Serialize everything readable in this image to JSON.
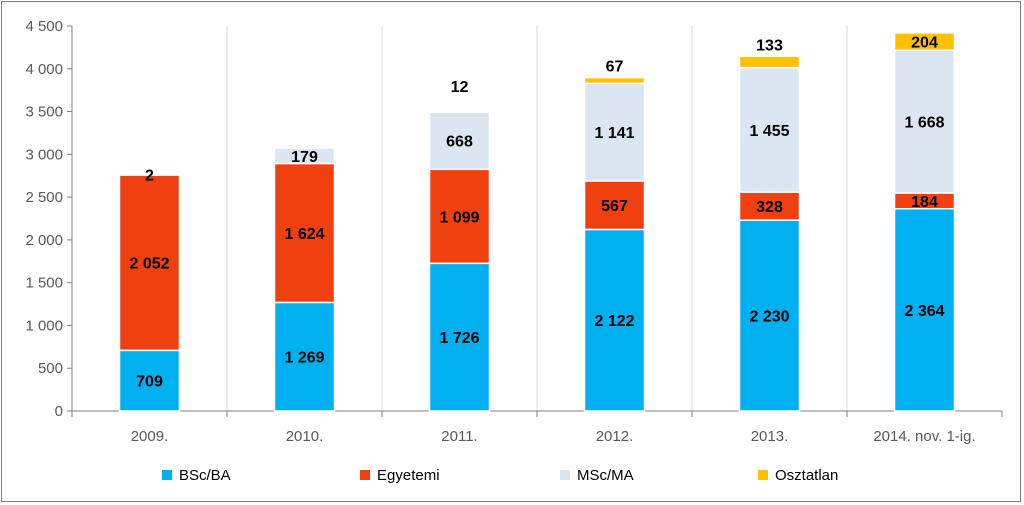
{
  "chart_data": {
    "type": "bar",
    "stacked": true,
    "title": "",
    "xlabel": "",
    "ylabel": "",
    "ylim": [
      0,
      4500
    ],
    "yticks": [
      0,
      500,
      1000,
      1500,
      2000,
      2500,
      3000,
      3500,
      4000,
      4500
    ],
    "ytick_labels": [
      "0",
      "500",
      "1 000",
      "1 500",
      "2 000",
      "2 500",
      "3 000",
      "3 500",
      "4 000",
      "4 500"
    ],
    "grid": "vertical category separators",
    "legend_position": "bottom",
    "categories": [
      "2009.",
      "2010.",
      "2011.",
      "2012.",
      "2013.",
      "2014. nov. 1-ig."
    ],
    "series": [
      {
        "name": "BSc/BA",
        "color": "#00B0F0",
        "values": [
          709,
          1269,
          1726,
          2122,
          2230,
          2364
        ],
        "labels": [
          "709",
          "1 269",
          "1 726",
          "2 122",
          "2 230",
          "2 364"
        ]
      },
      {
        "name": "Egyetemi",
        "color": "#F04010",
        "values": [
          2052,
          1624,
          1099,
          567,
          328,
          184
        ],
        "labels": [
          "2 052",
          "1 624",
          "1 099",
          "567",
          "328",
          "184"
        ]
      },
      {
        "name": "MSc/MA",
        "color": "#DCE6F2",
        "values": [
          2,
          179,
          668,
          1141,
          1455,
          1668
        ],
        "labels": [
          "2",
          "179",
          "668",
          "1 141",
          "1 455",
          "1 668"
        ]
      },
      {
        "name": "Osztatlan",
        "color": "#FFC000",
        "values": [
          0,
          0,
          12,
          67,
          133,
          204
        ],
        "labels": [
          "",
          "",
          "12",
          "67",
          "133",
          "204"
        ]
      }
    ]
  }
}
